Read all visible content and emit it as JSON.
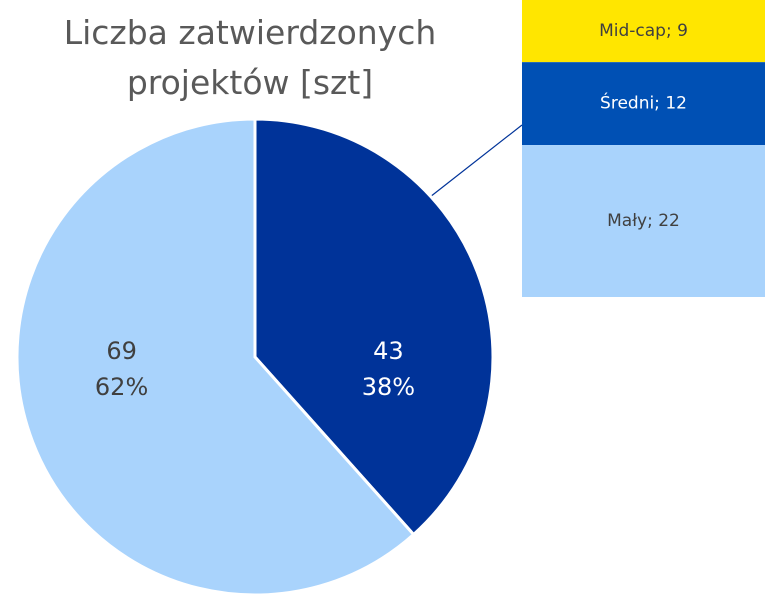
{
  "chart_data": {
    "type": "pie",
    "title": "Liczba zatwierdzonych projektów [szt]",
    "values": [
      43,
      69
    ],
    "percentages": [
      38,
      62
    ],
    "percentage_labels": [
      "38%",
      "62%"
    ],
    "colors": [
      "#003399",
      "#a9d3fc"
    ],
    "breakdown": {
      "values": [
        9,
        12,
        22
      ],
      "value_labels": [
        "Mid-cap; 9",
        "Średni; 12",
        "Mały; 22"
      ],
      "colors": [
        "#ffe600",
        "#0050b4",
        "#a9d3fc"
      ]
    }
  }
}
